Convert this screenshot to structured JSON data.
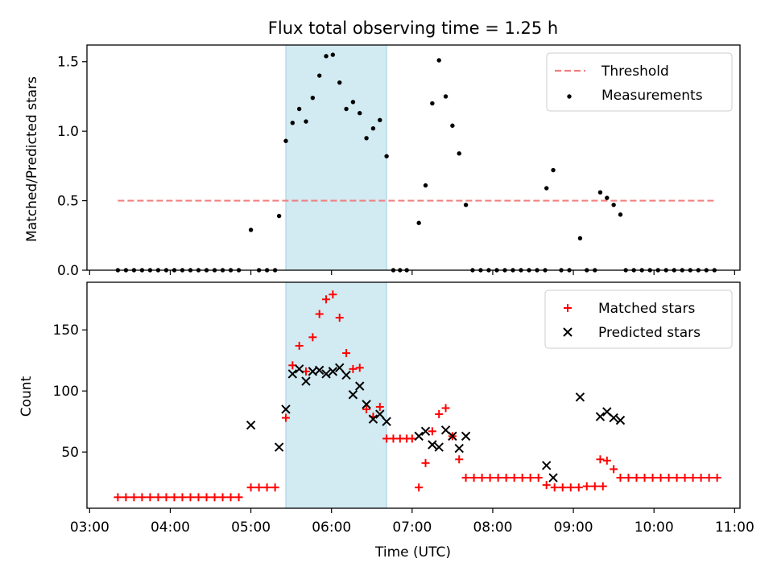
{
  "figure": {
    "title": "Flux total observing time = 1.25 h",
    "xlabel": "Time (UTC)",
    "xticks": [
      "03:00",
      "04:00",
      "05:00",
      "06:00",
      "07:00",
      "08:00",
      "09:00",
      "10:00",
      "11:00"
    ],
    "highlight_band": {
      "x_start": "05:26",
      "x_end": "06:41",
      "color": "#add8e6"
    }
  },
  "chart_data": [
    {
      "type": "scatter",
      "ylabel": "Matched/Predicted stars",
      "ylim": [
        0,
        1.62
      ],
      "yticks": [
        "0.0",
        "0.5",
        "1.0",
        "1.5"
      ],
      "legend_position": "top-right",
      "threshold": {
        "name": "Threshold",
        "value": 0.5,
        "x_start": "03:21",
        "x_end": "10:45",
        "color": "#f08080",
        "style": "dashed"
      },
      "series": [
        {
          "name": "Measurements",
          "marker": "dot",
          "color": "#000000",
          "points": [
            [
              "03:21",
              0
            ],
            [
              "03:27",
              0
            ],
            [
              "03:33",
              0
            ],
            [
              "03:39",
              0
            ],
            [
              "03:45",
              0
            ],
            [
              "03:51",
              0
            ],
            [
              "03:57",
              0
            ],
            [
              "04:03",
              0
            ],
            [
              "04:09",
              0
            ],
            [
              "04:15",
              0
            ],
            [
              "04:21",
              0
            ],
            [
              "04:27",
              0
            ],
            [
              "04:33",
              0
            ],
            [
              "04:39",
              0
            ],
            [
              "04:45",
              0
            ],
            [
              "04:51",
              0
            ],
            [
              "05:00",
              0.29
            ],
            [
              "05:06",
              0
            ],
            [
              "05:12",
              0
            ],
            [
              "05:18",
              0
            ],
            [
              "05:21",
              0.39
            ],
            [
              "05:26",
              0.93
            ],
            [
              "05:31",
              1.06
            ],
            [
              "05:36",
              1.16
            ],
            [
              "05:41",
              1.07
            ],
            [
              "05:46",
              1.24
            ],
            [
              "05:51",
              1.4
            ],
            [
              "05:56",
              1.54
            ],
            [
              "06:01",
              1.55
            ],
            [
              "06:06",
              1.35
            ],
            [
              "06:11",
              1.16
            ],
            [
              "06:16",
              1.21
            ],
            [
              "06:21",
              1.13
            ],
            [
              "06:26",
              0.95
            ],
            [
              "06:31",
              1.02
            ],
            [
              "06:36",
              1.08
            ],
            [
              "06:41",
              0.82
            ],
            [
              "06:46",
              0
            ],
            [
              "06:51",
              0
            ],
            [
              "06:56",
              0
            ],
            [
              "07:05",
              0.34
            ],
            [
              "07:10",
              0.61
            ],
            [
              "07:15",
              1.2
            ],
            [
              "07:20",
              1.51
            ],
            [
              "07:25",
              1.25
            ],
            [
              "07:30",
              1.04
            ],
            [
              "07:35",
              0.84
            ],
            [
              "07:40",
              0.47
            ],
            [
              "07:45",
              0
            ],
            [
              "07:51",
              0
            ],
            [
              "07:57",
              0
            ],
            [
              "08:03",
              0
            ],
            [
              "08:09",
              0
            ],
            [
              "08:15",
              0
            ],
            [
              "08:21",
              0
            ],
            [
              "08:27",
              0
            ],
            [
              "08:33",
              0
            ],
            [
              "08:39",
              0
            ],
            [
              "08:40",
              0.59
            ],
            [
              "08:45",
              0.72
            ],
            [
              "08:51",
              0
            ],
            [
              "08:57",
              0
            ],
            [
              "09:05",
              0.23
            ],
            [
              "09:10",
              0
            ],
            [
              "09:16",
              0
            ],
            [
              "09:20",
              0.56
            ],
            [
              "09:25",
              0.52
            ],
            [
              "09:30",
              0.47
            ],
            [
              "09:35",
              0.4
            ],
            [
              "09:39",
              0
            ],
            [
              "09:45",
              0
            ],
            [
              "09:51",
              0
            ],
            [
              "09:57",
              0
            ],
            [
              "10:03",
              0
            ],
            [
              "10:09",
              0
            ],
            [
              "10:15",
              0
            ],
            [
              "10:21",
              0
            ],
            [
              "10:27",
              0
            ],
            [
              "10:33",
              0
            ],
            [
              "10:39",
              0
            ],
            [
              "10:45",
              0
            ]
          ]
        }
      ]
    },
    {
      "type": "scatter",
      "ylabel": "Count",
      "ylim": [
        4,
        189
      ],
      "yticks": [
        "50",
        "100",
        "150"
      ],
      "legend_position": "top-right",
      "series": [
        {
          "name": "Matched stars",
          "marker": "plus",
          "color": "#ff0000",
          "points": [
            [
              "03:21",
              13
            ],
            [
              "03:27",
              13
            ],
            [
              "03:33",
              13
            ],
            [
              "03:39",
              13
            ],
            [
              "03:45",
              13
            ],
            [
              "03:51",
              13
            ],
            [
              "03:57",
              13
            ],
            [
              "04:03",
              13
            ],
            [
              "04:09",
              13
            ],
            [
              "04:15",
              13
            ],
            [
              "04:21",
              13
            ],
            [
              "04:27",
              13
            ],
            [
              "04:33",
              13
            ],
            [
              "04:39",
              13
            ],
            [
              "04:45",
              13
            ],
            [
              "04:51",
              13
            ],
            [
              "05:00",
              21
            ],
            [
              "05:06",
              21
            ],
            [
              "05:12",
              21
            ],
            [
              "05:18",
              21
            ],
            [
              "05:26",
              78
            ],
            [
              "05:31",
              121
            ],
            [
              "05:36",
              137
            ],
            [
              "05:41",
              116
            ],
            [
              "05:46",
              144
            ],
            [
              "05:51",
              163
            ],
            [
              "05:56",
              175
            ],
            [
              "06:01",
              179
            ],
            [
              "06:06",
              160
            ],
            [
              "06:11",
              131
            ],
            [
              "06:16",
              118
            ],
            [
              "06:21",
              119
            ],
            [
              "06:26",
              85
            ],
            [
              "06:31",
              79
            ],
            [
              "06:36",
              87
            ],
            [
              "06:41",
              61
            ],
            [
              "06:46",
              61
            ],
            [
              "06:51",
              61
            ],
            [
              "06:56",
              61
            ],
            [
              "07:00",
              61
            ],
            [
              "07:05",
              21
            ],
            [
              "07:10",
              41
            ],
            [
              "07:15",
              67
            ],
            [
              "07:20",
              81
            ],
            [
              "07:25",
              86
            ],
            [
              "07:30",
              63
            ],
            [
              "07:35",
              44
            ],
            [
              "07:40",
              29
            ],
            [
              "07:46",
              29
            ],
            [
              "07:52",
              29
            ],
            [
              "07:58",
              29
            ],
            [
              "08:04",
              29
            ],
            [
              "08:10",
              29
            ],
            [
              "08:16",
              29
            ],
            [
              "08:22",
              29
            ],
            [
              "08:28",
              29
            ],
            [
              "08:34",
              29
            ],
            [
              "08:40",
              23
            ],
            [
              "08:46",
              21
            ],
            [
              "08:52",
              21
            ],
            [
              "08:58",
              21
            ],
            [
              "09:04",
              21
            ],
            [
              "09:10",
              22
            ],
            [
              "09:16",
              22
            ],
            [
              "09:22",
              22
            ],
            [
              "09:20",
              44
            ],
            [
              "09:25",
              43
            ],
            [
              "09:30",
              36
            ],
            [
              "09:35",
              29
            ],
            [
              "09:41",
              29
            ],
            [
              "09:47",
              29
            ],
            [
              "09:53",
              29
            ],
            [
              "09:59",
              29
            ],
            [
              "10:05",
              29
            ],
            [
              "10:11",
              29
            ],
            [
              "10:17",
              29
            ],
            [
              "10:23",
              29
            ],
            [
              "10:29",
              29
            ],
            [
              "10:35",
              29
            ],
            [
              "10:41",
              29
            ],
            [
              "10:47",
              29
            ]
          ]
        },
        {
          "name": "Predicted stars",
          "marker": "x",
          "color": "#000000",
          "points": [
            [
              "05:00",
              72
            ],
            [
              "05:21",
              54
            ],
            [
              "05:26",
              85
            ],
            [
              "05:31",
              114
            ],
            [
              "05:36",
              118
            ],
            [
              "05:41",
              108
            ],
            [
              "05:46",
              116
            ],
            [
              "05:51",
              117
            ],
            [
              "05:56",
              114
            ],
            [
              "06:01",
              116
            ],
            [
              "06:06",
              119
            ],
            [
              "06:11",
              113
            ],
            [
              "06:16",
              97
            ],
            [
              "06:21",
              104
            ],
            [
              "06:26",
              89
            ],
            [
              "06:31",
              77
            ],
            [
              "06:36",
              81
            ],
            [
              "06:41",
              75
            ],
            [
              "07:05",
              63
            ],
            [
              "07:10",
              67
            ],
            [
              "07:15",
              56
            ],
            [
              "07:20",
              54
            ],
            [
              "07:25",
              68
            ],
            [
              "07:30",
              63
            ],
            [
              "07:35",
              53
            ],
            [
              "07:40",
              63
            ],
            [
              "08:40",
              39
            ],
            [
              "08:45",
              29
            ],
            [
              "09:05",
              95
            ],
            [
              "09:20",
              79
            ],
            [
              "09:25",
              83
            ],
            [
              "09:30",
              78
            ],
            [
              "09:35",
              76
            ]
          ]
        }
      ]
    }
  ]
}
